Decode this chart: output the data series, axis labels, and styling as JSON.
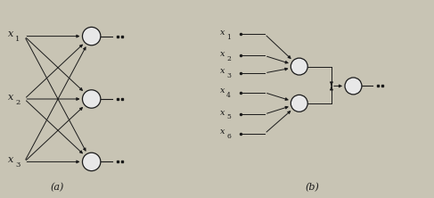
{
  "bg_color": "#c8c4b4",
  "line_color": "#1a1a1a",
  "node_fill": "#e8e8e8",
  "node_edge": "#1a1a1a",
  "label_a": "(a)",
  "label_b": "(b)",
  "inputs_a": [
    [
      "x",
      "1"
    ],
    [
      "x",
      "2"
    ],
    [
      "x",
      "3"
    ]
  ],
  "inputs_b": [
    [
      "x",
      "1"
    ],
    [
      "x",
      "2"
    ],
    [
      "x",
      "3"
    ],
    [
      "x",
      "4"
    ],
    [
      "x",
      "5"
    ],
    [
      "x",
      "6"
    ]
  ]
}
